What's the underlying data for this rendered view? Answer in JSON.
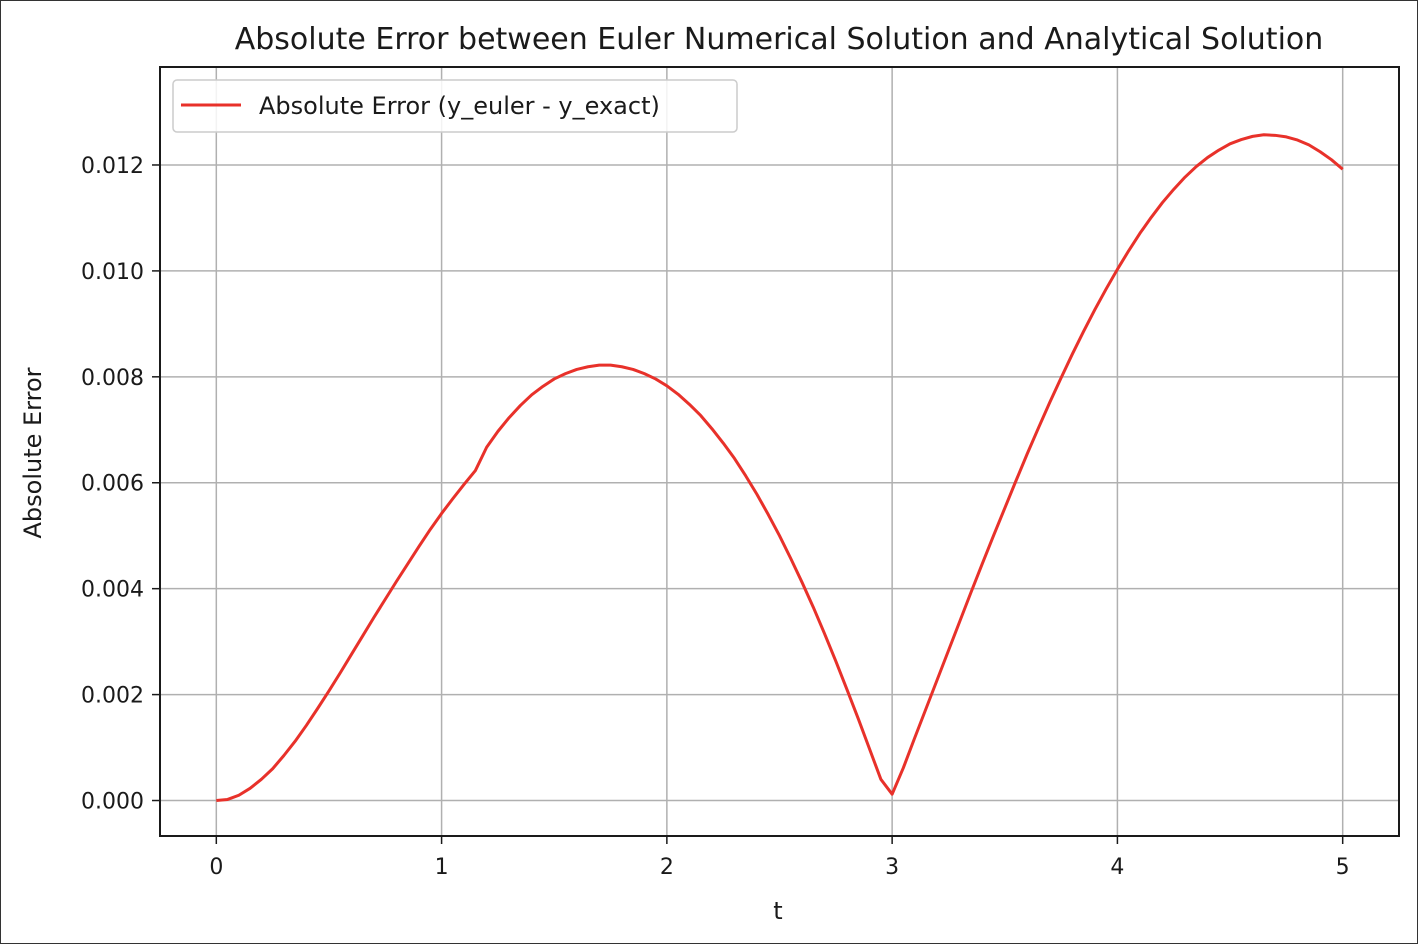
{
  "chart_data": {
    "type": "line",
    "title": "Absolute Error between Euler Numerical Solution and Analytical Solution",
    "xlabel": "t",
    "ylabel": "Absolute Error",
    "xlim": [
      -0.25,
      5.25
    ],
    "ylim": [
      -0.00067,
      0.01385
    ],
    "xticks": [
      0,
      1,
      2,
      3,
      4,
      5
    ],
    "xtick_labels": [
      "0",
      "1",
      "2",
      "3",
      "4",
      "5"
    ],
    "yticks": [
      0.0,
      0.002,
      0.004,
      0.006,
      0.008,
      0.01,
      0.012
    ],
    "ytick_labels": [
      "0.000",
      "0.002",
      "0.004",
      "0.006",
      "0.008",
      "0.010",
      "0.012"
    ],
    "grid": true,
    "legend_position": "upper-left",
    "series": [
      {
        "name": "Absolute Error (y_euler - y_exact)",
        "color": "#e8312a",
        "x": [
          0,
          0.05,
          0.1,
          0.15,
          0.2,
          0.25,
          0.3,
          0.35,
          0.4,
          0.45,
          0.5,
          0.55,
          0.6,
          0.65,
          0.7,
          0.75,
          0.8,
          0.85,
          0.9,
          0.95,
          1.0,
          1.05,
          1.1,
          1.15,
          1.2,
          1.25,
          1.3,
          1.35,
          1.4,
          1.45,
          1.5,
          1.55,
          1.6,
          1.65,
          1.7,
          1.75,
          1.8,
          1.85,
          1.9,
          1.95,
          2.0,
          2.05,
          2.1,
          2.15,
          2.2,
          2.25,
          2.3,
          2.35,
          2.4,
          2.45,
          2.5,
          2.55,
          2.6,
          2.65,
          2.7,
          2.75,
          2.8,
          2.85,
          2.9,
          2.95,
          3.0,
          3.05,
          3.1,
          3.15,
          3.2,
          3.25,
          3.3,
          3.35,
          3.4,
          3.45,
          3.5,
          3.55,
          3.6,
          3.65,
          3.7,
          3.75,
          3.8,
          3.85,
          3.9,
          3.95,
          4.0,
          4.05,
          4.1,
          4.15,
          4.2,
          4.25,
          4.3,
          4.35,
          4.4,
          4.45,
          4.5,
          4.55,
          4.6,
          4.65,
          4.7,
          4.75,
          4.8,
          4.85,
          4.9,
          4.95,
          5.0
        ],
        "y": [
          0.0,
          2e-05,
          0.0001,
          0.00023,
          0.0004,
          0.0006,
          0.00085,
          0.00112,
          0.00142,
          0.00174,
          0.00207,
          0.00241,
          0.00276,
          0.00311,
          0.00346,
          0.0038,
          0.00414,
          0.00447,
          0.0048,
          0.00512,
          0.00542,
          0.0057,
          0.00597,
          0.00623,
          0.00667,
          0.00697,
          0.00723,
          0.00746,
          0.00766,
          0.00782,
          0.00796,
          0.00806,
          0.00814,
          0.00819,
          0.00822,
          0.00822,
          0.00819,
          0.00814,
          0.00806,
          0.00796,
          0.00783,
          0.00767,
          0.00748,
          0.00727,
          0.00702,
          0.00675,
          0.00646,
          0.00613,
          0.00578,
          0.0054,
          0.005,
          0.00457,
          0.00412,
          0.00365,
          0.00315,
          0.00263,
          0.00209,
          0.00154,
          0.00097,
          0.0004,
          0.00012,
          0.00062,
          0.00118,
          0.00173,
          0.00228,
          0.00283,
          0.00338,
          0.00393,
          0.00447,
          0.005,
          0.00552,
          0.00604,
          0.00655,
          0.00704,
          0.00752,
          0.00798,
          0.00843,
          0.00886,
          0.00927,
          0.00966,
          0.01003,
          0.01038,
          0.01071,
          0.01101,
          0.01129,
          0.01154,
          0.01177,
          0.01197,
          0.01214,
          0.01228,
          0.0124,
          0.01248,
          0.01254,
          0.01257,
          0.01256,
          0.01253,
          0.01247,
          0.01238,
          0.01225,
          0.0121,
          0.01192
        ]
      }
    ]
  }
}
